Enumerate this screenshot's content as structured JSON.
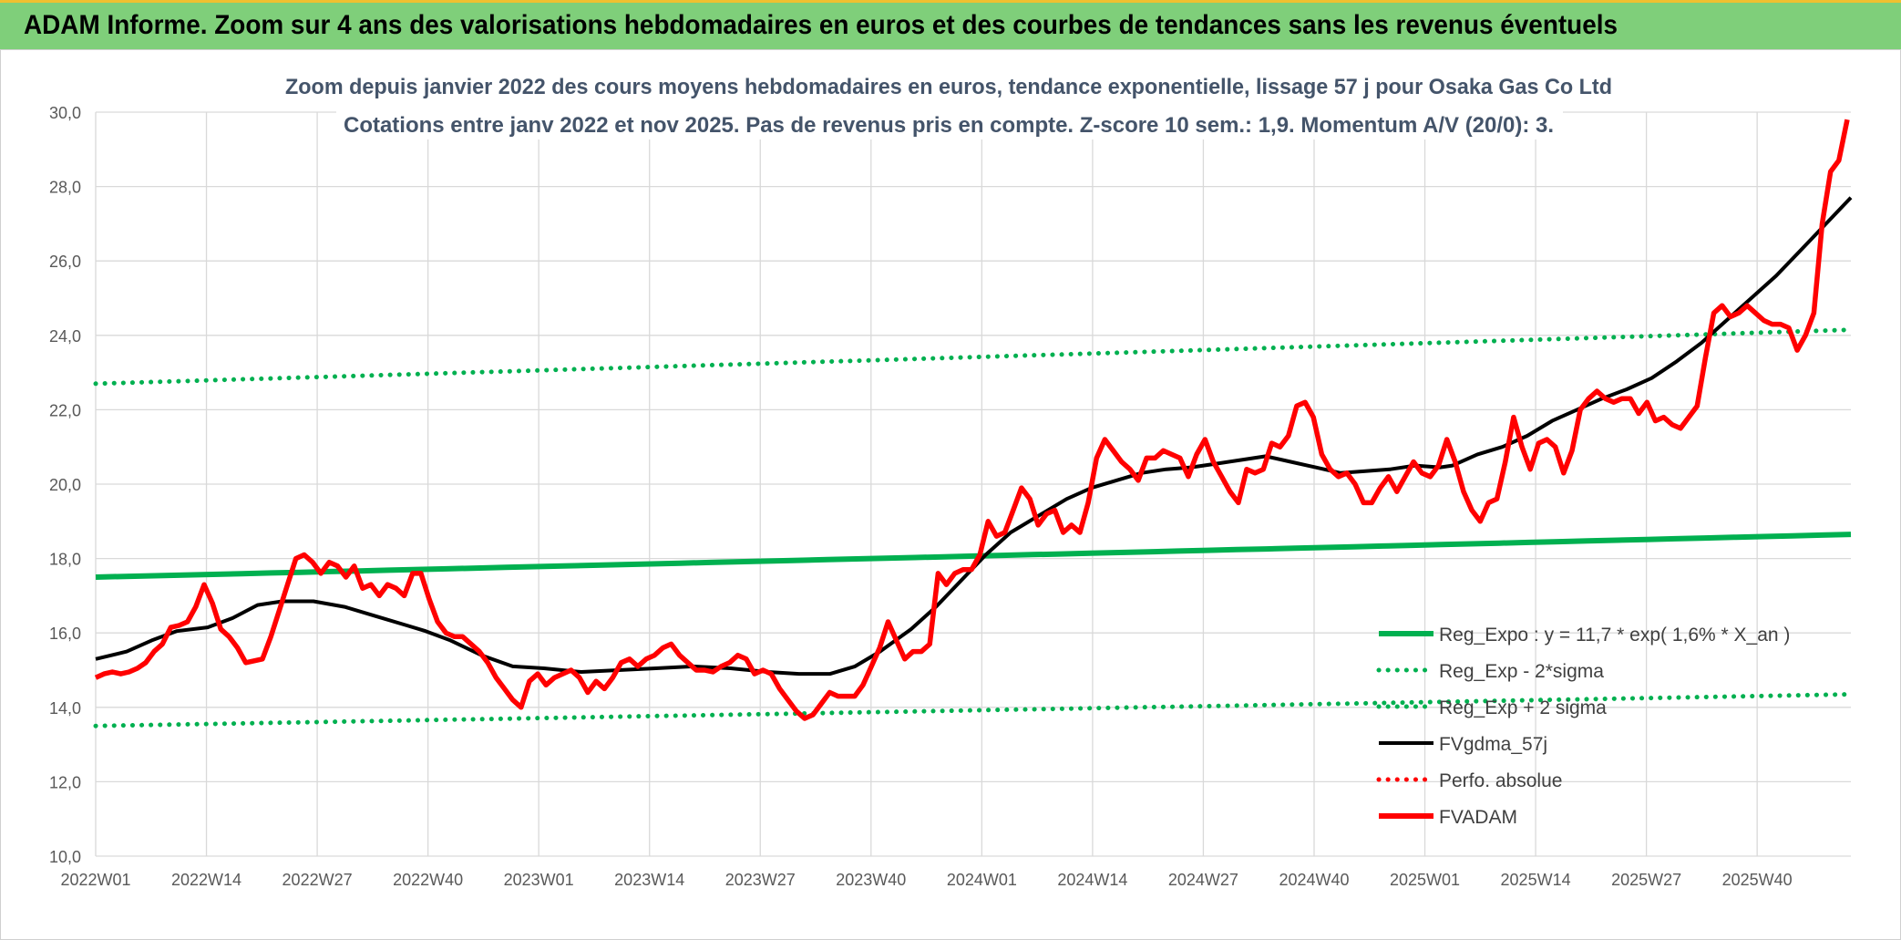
{
  "header": {
    "title": "ADAM Informe. Zoom sur 4 ans des valorisations hebdomadaires en euros et des courbes de tendances sans les revenus éventuels"
  },
  "colors": {
    "banner": "#7fcf7a",
    "reg_expo": "#00b050",
    "fvgdma": "#000000",
    "fvadam": "#ff0000",
    "perfo": "#ff0000",
    "title_text": "#44546a"
  },
  "chart_data": {
    "type": "line",
    "title": "Zoom depuis janvier 2022 des cours moyens hebdomadaires en euros, tendance exponentielle, lissage 57 j pour Osaka Gas Co Ltd",
    "subtitle": "Cotations entre janv 2022 et nov 2025. Pas de revenus pris en compte. Z-score 10 sem.: 1,9. Momentum A/V (20/0): 3.",
    "xlabel": "",
    "ylabel": "",
    "ylim": [
      10,
      30
    ],
    "yticks": [
      "10,0",
      "12,0",
      "14,0",
      "16,0",
      "18,0",
      "20,0",
      "22,0",
      "24,0",
      "26,0",
      "28,0",
      "30,0"
    ],
    "x_tick_labels": [
      "2022W01",
      "2022W14",
      "2022W27",
      "2022W40",
      "2023W01",
      "2023W14",
      "2023W27",
      "2023W40",
      "2024W01",
      "2024W14",
      "2024W27",
      "2024W40",
      "2025W01",
      "2025W14",
      "2025W27",
      "2025W40"
    ],
    "weeks_count": 207,
    "grid": true,
    "legend_position": "lower-right",
    "legend": [
      {
        "label": "Reg_Expo : y = 11,7 * exp( 1,6% *  X_an )",
        "style": "solid-thick",
        "color": "#00b050"
      },
      {
        "label": "Reg_Exp - 2*sigma",
        "style": "dotted",
        "color": "#00b050"
      },
      {
        "label": "Reg_Exp + 2 sigma",
        "style": "dotted",
        "color": "#00b050"
      },
      {
        "label": "FVgdma_57j",
        "style": "solid",
        "color": "#000000"
      },
      {
        "label": "Perfo. absolue",
        "style": "dotted",
        "color": "#ff0000"
      },
      {
        "label": "FVADAM",
        "style": "solid-thick",
        "color": "#ff0000"
      }
    ],
    "series": [
      {
        "name": "Reg_Expo : y = 11,7 * exp( 1,6% *  X_an )",
        "start": 17.5,
        "end": 18.65
      },
      {
        "name": "Reg_Exp - 2*sigma",
        "start": 13.5,
        "end": 14.35
      },
      {
        "name": "Reg_Exp + 2 sigma",
        "start": 22.7,
        "end": 24.15
      },
      {
        "name": "FVgdma_57j",
        "points": [
          [
            0,
            15.3
          ],
          [
            5,
            15.5
          ],
          [
            9,
            15.8
          ],
          [
            13,
            16.05
          ],
          [
            18,
            16.15
          ],
          [
            22,
            16.4
          ],
          [
            26,
            16.75
          ],
          [
            30,
            16.85
          ],
          [
            35,
            16.85
          ],
          [
            40,
            16.7
          ],
          [
            45,
            16.45
          ],
          [
            50,
            16.2
          ],
          [
            53,
            16.05
          ],
          [
            57,
            15.8
          ],
          [
            62,
            15.4
          ],
          [
            67,
            15.1
          ],
          [
            72,
            15.05
          ],
          [
            78,
            14.95
          ],
          [
            84,
            15.0
          ],
          [
            90,
            15.05
          ],
          [
            96,
            15.1
          ],
          [
            102,
            15.05
          ],
          [
            108,
            14.95
          ],
          [
            113,
            14.9
          ],
          [
            118,
            14.9
          ],
          [
            122,
            15.1
          ],
          [
            126,
            15.5
          ],
          [
            131,
            16.1
          ],
          [
            135,
            16.7
          ],
          [
            139,
            17.4
          ],
          [
            143,
            18.1
          ],
          [
            147,
            18.7
          ],
          [
            152,
            19.2
          ],
          [
            156,
            19.6
          ],
          [
            160,
            19.9
          ],
          [
            164,
            20.1
          ],
          [
            168,
            20.3
          ],
          [
            172,
            20.4
          ],
          [
            176,
            20.45
          ],
          [
            180,
            20.55
          ],
          [
            184,
            20.65
          ],
          [
            188,
            20.75
          ],
          [
            192,
            20.6
          ],
          [
            196,
            20.45
          ],
          [
            200,
            20.3
          ],
          [
            204,
            20.35
          ],
          [
            208,
            20.4
          ],
          [
            212,
            20.5
          ],
          [
            216,
            20.45
          ],
          [
            218,
            20.5
          ],
          [
            222,
            20.8
          ],
          [
            226,
            21.0
          ],
          [
            230,
            21.3
          ],
          [
            234,
            21.7
          ],
          [
            238,
            22.0
          ],
          [
            242,
            22.3
          ],
          [
            246,
            22.55
          ],
          [
            250,
            22.85
          ],
          [
            254,
            23.3
          ],
          [
            258,
            23.8
          ],
          [
            262,
            24.4
          ],
          [
            266,
            25.0
          ],
          [
            270,
            25.6
          ],
          [
            274,
            26.3
          ],
          [
            278,
            27.0
          ],
          [
            282,
            27.7
          ]
        ]
      },
      {
        "name": "FVADAM",
        "points": [
          [
            0,
            14.8
          ],
          [
            1,
            14.9
          ],
          [
            2,
            14.95
          ],
          [
            3,
            14.9
          ],
          [
            4,
            14.95
          ],
          [
            5,
            15.05
          ],
          [
            6,
            15.2
          ],
          [
            7,
            15.5
          ],
          [
            8,
            15.7
          ],
          [
            9,
            16.15
          ],
          [
            10,
            16.2
          ],
          [
            11,
            16.3
          ],
          [
            12,
            16.7
          ],
          [
            13,
            17.3
          ],
          [
            14,
            16.8
          ],
          [
            15,
            16.1
          ],
          [
            16,
            15.9
          ],
          [
            17,
            15.6
          ],
          [
            18,
            15.2
          ],
          [
            19,
            15.25
          ],
          [
            20,
            15.3
          ],
          [
            21,
            15.9
          ],
          [
            22,
            16.6
          ],
          [
            23,
            17.3
          ],
          [
            24,
            18.0
          ],
          [
            25,
            18.1
          ],
          [
            26,
            17.9
          ],
          [
            27,
            17.6
          ],
          [
            28,
            17.9
          ],
          [
            29,
            17.8
          ],
          [
            30,
            17.5
          ],
          [
            31,
            17.8
          ],
          [
            32,
            17.2
          ],
          [
            33,
            17.3
          ],
          [
            34,
            17.0
          ],
          [
            35,
            17.3
          ],
          [
            36,
            17.2
          ],
          [
            37,
            17.0
          ],
          [
            38,
            17.6
          ],
          [
            39,
            17.6
          ],
          [
            40,
            16.9
          ],
          [
            41,
            16.3
          ],
          [
            42,
            16.0
          ],
          [
            43,
            15.9
          ],
          [
            44,
            15.9
          ],
          [
            45,
            15.7
          ],
          [
            46,
            15.5
          ],
          [
            47,
            15.2
          ],
          [
            48,
            14.8
          ],
          [
            49,
            14.5
          ],
          [
            50,
            14.2
          ],
          [
            51,
            14.0
          ],
          [
            52,
            14.7
          ],
          [
            53,
            14.9
          ],
          [
            54,
            14.6
          ],
          [
            55,
            14.8
          ],
          [
            56,
            14.9
          ],
          [
            57,
            15.0
          ],
          [
            58,
            14.8
          ],
          [
            59,
            14.4
          ],
          [
            60,
            14.7
          ],
          [
            61,
            14.5
          ],
          [
            62,
            14.8
          ],
          [
            63,
            15.2
          ],
          [
            64,
            15.3
          ],
          [
            65,
            15.1
          ],
          [
            66,
            15.3
          ],
          [
            67,
            15.4
          ],
          [
            68,
            15.6
          ],
          [
            69,
            15.7
          ],
          [
            70,
            15.4
          ],
          [
            71,
            15.2
          ],
          [
            72,
            15.0
          ],
          [
            73,
            15.0
          ],
          [
            74,
            14.95
          ],
          [
            75,
            15.1
          ],
          [
            76,
            15.2
          ],
          [
            77,
            15.4
          ],
          [
            78,
            15.3
          ],
          [
            79,
            14.9
          ],
          [
            80,
            15.0
          ],
          [
            81,
            14.9
          ],
          [
            82,
            14.5
          ],
          [
            83,
            14.2
          ],
          [
            84,
            13.9
          ],
          [
            85,
            13.7
          ],
          [
            86,
            13.8
          ],
          [
            87,
            14.1
          ],
          [
            88,
            14.4
          ],
          [
            89,
            14.3
          ],
          [
            90,
            14.3
          ],
          [
            91,
            14.3
          ],
          [
            92,
            14.6
          ],
          [
            93,
            15.1
          ],
          [
            94,
            15.6
          ],
          [
            95,
            16.3
          ],
          [
            96,
            15.8
          ],
          [
            97,
            15.3
          ],
          [
            98,
            15.5
          ],
          [
            99,
            15.5
          ],
          [
            100,
            15.7
          ],
          [
            101,
            17.6
          ],
          [
            102,
            17.3
          ],
          [
            103,
            17.6
          ],
          [
            104,
            17.7
          ],
          [
            105,
            17.7
          ],
          [
            106,
            18.1
          ],
          [
            107,
            19.0
          ],
          [
            108,
            18.6
          ],
          [
            109,
            18.7
          ],
          [
            110,
            19.3
          ],
          [
            111,
            19.9
          ],
          [
            112,
            19.6
          ],
          [
            113,
            18.9
          ],
          [
            114,
            19.2
          ],
          [
            115,
            19.3
          ],
          [
            116,
            18.7
          ],
          [
            117,
            18.9
          ],
          [
            118,
            18.7
          ],
          [
            119,
            19.5
          ],
          [
            120,
            20.7
          ],
          [
            121,
            21.2
          ],
          [
            122,
            20.9
          ],
          [
            123,
            20.6
          ],
          [
            124,
            20.4
          ],
          [
            125,
            20.1
          ],
          [
            126,
            20.7
          ],
          [
            127,
            20.7
          ],
          [
            128,
            20.9
          ],
          [
            129,
            20.8
          ],
          [
            130,
            20.7
          ],
          [
            131,
            20.2
          ],
          [
            132,
            20.8
          ],
          [
            133,
            21.2
          ],
          [
            134,
            20.6
          ],
          [
            135,
            20.2
          ],
          [
            136,
            19.8
          ],
          [
            137,
            19.5
          ],
          [
            138,
            20.4
          ],
          [
            139,
            20.3
          ],
          [
            140,
            20.4
          ],
          [
            141,
            21.1
          ],
          [
            142,
            21.0
          ],
          [
            143,
            21.3
          ],
          [
            144,
            22.1
          ],
          [
            145,
            22.2
          ],
          [
            146,
            21.8
          ],
          [
            147,
            20.8
          ],
          [
            148,
            20.4
          ],
          [
            149,
            20.2
          ],
          [
            150,
            20.3
          ],
          [
            151,
            20.0
          ],
          [
            152,
            19.5
          ],
          [
            153,
            19.5
          ],
          [
            154,
            19.9
          ],
          [
            155,
            20.2
          ],
          [
            156,
            19.8
          ],
          [
            157,
            20.2
          ],
          [
            158,
            20.6
          ],
          [
            159,
            20.3
          ],
          [
            160,
            20.2
          ],
          [
            161,
            20.5
          ],
          [
            162,
            21.2
          ],
          [
            163,
            20.6
          ],
          [
            164,
            19.8
          ],
          [
            165,
            19.3
          ],
          [
            166,
            19.0
          ],
          [
            167,
            19.5
          ],
          [
            168,
            19.6
          ],
          [
            169,
            20.6
          ],
          [
            170,
            21.8
          ],
          [
            171,
            21.0
          ],
          [
            172,
            20.4
          ],
          [
            173,
            21.1
          ],
          [
            174,
            21.2
          ],
          [
            175,
            21.0
          ],
          [
            176,
            20.3
          ],
          [
            177,
            20.9
          ],
          [
            178,
            22.0
          ],
          [
            179,
            22.3
          ],
          [
            180,
            22.5
          ],
          [
            181,
            22.3
          ],
          [
            182,
            22.2
          ],
          [
            183,
            22.3
          ],
          [
            184,
            22.3
          ],
          [
            185,
            21.9
          ],
          [
            186,
            22.2
          ],
          [
            187,
            21.7
          ],
          [
            188,
            21.8
          ],
          [
            189,
            21.6
          ],
          [
            190,
            21.5
          ],
          [
            191,
            21.8
          ],
          [
            192,
            22.1
          ],
          [
            193,
            23.4
          ],
          [
            194,
            24.6
          ],
          [
            195,
            24.8
          ],
          [
            196,
            24.5
          ],
          [
            197,
            24.6
          ],
          [
            198,
            24.8
          ],
          [
            199,
            24.6
          ],
          [
            200,
            24.4
          ],
          [
            201,
            24.3
          ],
          [
            202,
            24.3
          ],
          [
            203,
            24.2
          ],
          [
            204,
            23.6
          ],
          [
            205,
            24.0
          ],
          [
            206,
            24.6
          ],
          [
            207,
            27.0
          ],
          [
            208,
            28.4
          ],
          [
            209,
            28.7
          ],
          [
            210,
            29.8
          ]
        ]
      }
    ]
  }
}
